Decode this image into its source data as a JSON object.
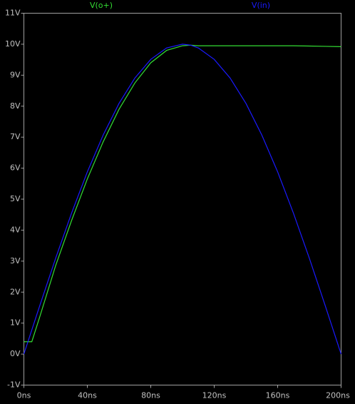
{
  "chart_data": {
    "type": "line",
    "x": [
      0,
      5,
      10,
      20,
      30,
      40,
      50,
      60,
      70,
      80,
      90,
      100,
      105,
      110,
      120,
      130,
      140,
      150,
      160,
      170,
      180,
      190,
      200
    ],
    "series": [
      {
        "name": "V(o+)",
        "color": "#33dd33",
        "values": [
          0.4,
          0.4,
          1.2,
          2.85,
          4.3,
          5.65,
          6.85,
          7.9,
          8.75,
          9.4,
          9.8,
          9.95,
          9.97,
          9.95,
          9.95,
          9.95,
          9.95,
          9.95,
          9.95,
          9.95,
          9.94,
          9.93,
          9.92
        ]
      },
      {
        "name": "V(in)",
        "color": "#1a1aff",
        "values": [
          0,
          0.78,
          1.56,
          3.09,
          4.54,
          5.88,
          7.07,
          8.09,
          8.91,
          9.51,
          9.88,
          10,
          9.97,
          9.88,
          9.51,
          8.91,
          8.09,
          7.07,
          5.88,
          4.54,
          3.09,
          1.56,
          0
        ]
      }
    ],
    "xlim": [
      0,
      200
    ],
    "xticks": [
      {
        "value": 0,
        "label": "0ns"
      },
      {
        "value": 40,
        "label": "40ns"
      },
      {
        "value": 80,
        "label": "80ns"
      },
      {
        "value": 120,
        "label": "120ns"
      },
      {
        "value": 160,
        "label": "160ns"
      },
      {
        "value": 200,
        "label": "200ns"
      }
    ],
    "ylim": [
      -1,
      11
    ],
    "yticks": [
      {
        "value": -1,
        "label": "-1V"
      },
      {
        "value": 0,
        "label": "0V"
      },
      {
        "value": 1,
        "label": "1V"
      },
      {
        "value": 2,
        "label": "2V"
      },
      {
        "value": 3,
        "label": "3V"
      },
      {
        "value": 4,
        "label": "4V"
      },
      {
        "value": 5,
        "label": "5V"
      },
      {
        "value": 6,
        "label": "6V"
      },
      {
        "value": 7,
        "label": "7V"
      },
      {
        "value": 8,
        "label": "8V"
      },
      {
        "value": 9,
        "label": "9V"
      },
      {
        "value": 10,
        "label": "10V"
      },
      {
        "value": 11,
        "label": "11V"
      }
    ]
  }
}
